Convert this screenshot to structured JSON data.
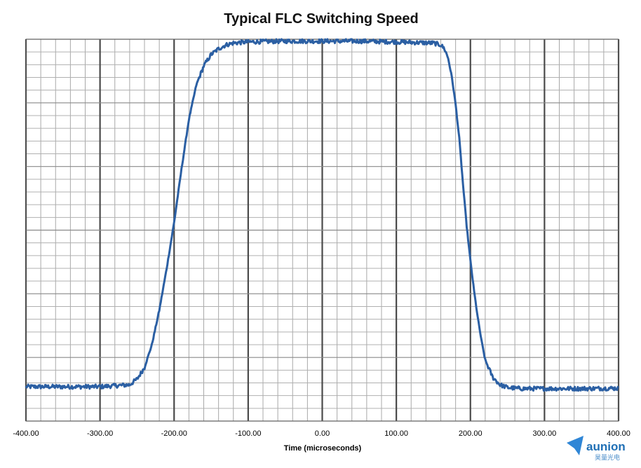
{
  "chart_data": {
    "type": "line",
    "title": "Typical FLC Switching Speed",
    "xlabel": "Time (microseconds)",
    "ylabel": "",
    "xlim": [
      -400,
      400
    ],
    "ylim": [
      0,
      100
    ],
    "x_tick_labels": [
      "-400.00",
      "-300.00",
      "-200.00",
      "-100.00",
      "0.00",
      "100.00",
      "200.00",
      "300.00",
      "400.00"
    ],
    "grid": true,
    "legend": "none",
    "series": [
      {
        "color": "#2b5fa3",
        "x": [
          -400,
          -350,
          -300,
          -260,
          -250,
          -240,
          -230,
          -220,
          -210,
          -200,
          -190,
          -180,
          -170,
          -160,
          -150,
          -140,
          -130,
          -120,
          -100,
          -50,
          0,
          50,
          100,
          150,
          160,
          165,
          170,
          175,
          180,
          185,
          190,
          195,
          200,
          205,
          210,
          215,
          220,
          230,
          240,
          250,
          260,
          270,
          300,
          350,
          400
        ],
        "y": [
          9,
          9,
          9,
          9.5,
          11,
          14,
          20,
          29,
          40,
          52,
          66,
          79,
          88,
          93,
          96,
          97.5,
          98.5,
          99,
          99.3,
          99.5,
          99.5,
          99.5,
          99.3,
          99,
          98.5,
          97.5,
          95,
          90,
          83,
          74,
          62,
          51,
          42,
          34,
          27,
          21,
          16,
          11.5,
          9.5,
          8.8,
          8.6,
          8.5,
          8.5,
          8.5,
          8.6
        ]
      }
    ]
  },
  "watermark": {
    "brand": "aunion",
    "sub": "昊量光电",
    "color": "#1f6fb5"
  }
}
